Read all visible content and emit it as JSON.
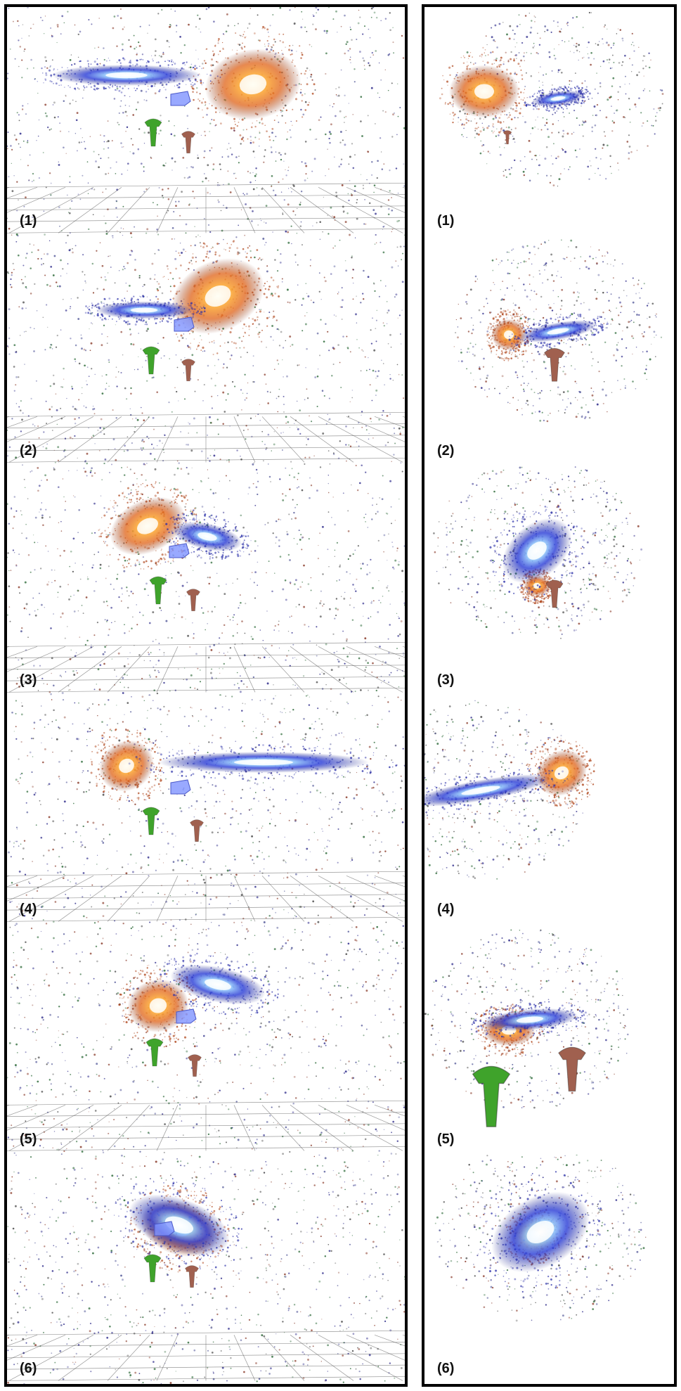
{
  "figure": {
    "left_column": {
      "panels": [
        {
          "label": "(1)"
        },
        {
          "label": "(2)"
        },
        {
          "label": "(3)"
        },
        {
          "label": "(4)"
        },
        {
          "label": "(5)"
        },
        {
          "label": "(6)"
        }
      ]
    },
    "right_column": {
      "panels": [
        {
          "label": "(1)"
        },
        {
          "label": "(2)"
        },
        {
          "label": "(3)"
        },
        {
          "label": "(4)"
        },
        {
          "label": "(5)"
        },
        {
          "label": "(6)"
        }
      ]
    }
  },
  "colors": {
    "blue_galaxy": "#2a3cd6",
    "orange_galaxy": "#e0651c",
    "green_controller": "#3fa32b",
    "brown_controller": "#a0604f",
    "headset": "#7f93ff",
    "border": "#000000"
  }
}
